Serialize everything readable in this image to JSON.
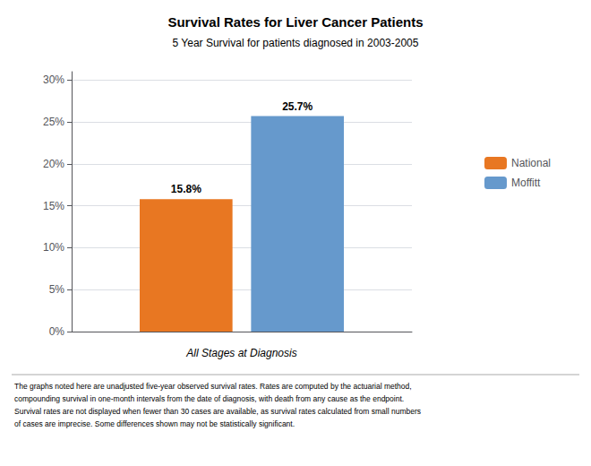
{
  "chart_data": {
    "type": "bar",
    "title": "Survival Rates for Liver Cancer Patients",
    "subtitle": "5 Year Survival for patients diagnosed in 2003-2005",
    "xlabel": "All Stages at Diagnosis",
    "categories": [
      null
    ],
    "series": [
      {
        "name": "National",
        "color": "#E87722",
        "values": [
          15.8
        ],
        "value_labels": [
          "15.8%"
        ]
      },
      {
        "name": "Moffitt",
        "color": "#6699CC",
        "values": [
          25.7
        ],
        "value_labels": [
          "25.7%"
        ]
      }
    ],
    "ylim": [
      0,
      31
    ],
    "yticks": [
      {
        "value": 0,
        "label": "0%"
      },
      {
        "value": 5,
        "label": "5%"
      },
      {
        "value": 10,
        "label": "10%"
      },
      {
        "value": 15,
        "label": "15%"
      },
      {
        "value": 20,
        "label": "20%"
      },
      {
        "value": 25,
        "label": "25%"
      },
      {
        "value": 30,
        "label": "30%"
      }
    ],
    "grid": true,
    "legend": "right",
    "data_labels": true,
    "annotations": [
      "The graphs noted here are unadjusted five-year observed survival rates. Rates are computed by the actuarial method,\ncompounding survival in one-month intervals from the date of diagnosis, with death from any cause as the endpoint.\nSurvival rates are not displayed when fewer than 30 cases are available, as survival rates calculated from small numbers\nof cases are imprecise. Some differences shown may not be statistically significant."
    ]
  }
}
